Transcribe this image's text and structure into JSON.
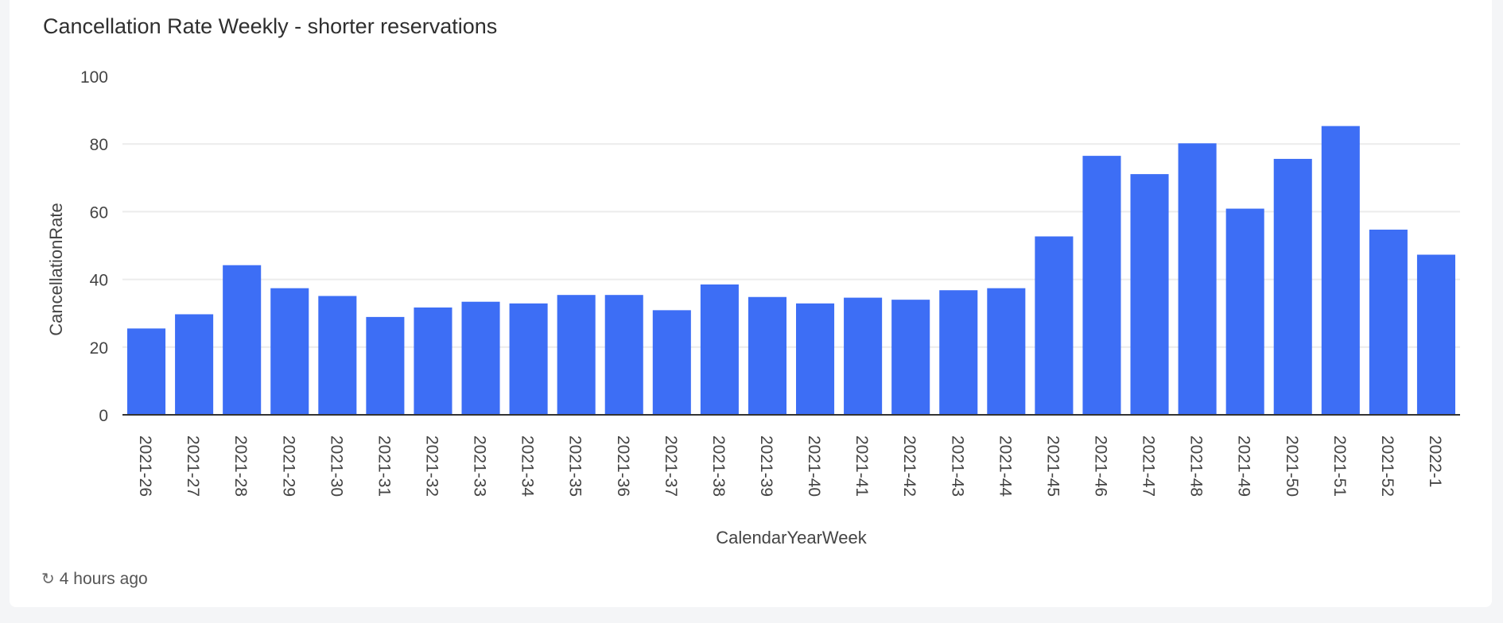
{
  "chart_data": {
    "type": "bar",
    "title": "Cancellation Rate Weekly - shorter reservations",
    "xlabel": "CalendarYearWeek",
    "ylabel": "CancellationRate",
    "ylim": [
      0,
      100
    ],
    "yticks": [
      0,
      20,
      40,
      60,
      80,
      100
    ],
    "grid": true,
    "color": "#3d6ef5",
    "categories": [
      "2021-26",
      "2021-27",
      "2021-28",
      "2021-29",
      "2021-30",
      "2021-31",
      "2021-32",
      "2021-33",
      "2021-34",
      "2021-35",
      "2021-36",
      "2021-37",
      "2021-38",
      "2021-39",
      "2021-40",
      "2021-41",
      "2021-42",
      "2021-43",
      "2021-44",
      "2021-45",
      "2021-46",
      "2021-47",
      "2021-48",
      "2021-49",
      "2021-50",
      "2021-51",
      "2021-52",
      "2022-1"
    ],
    "values": [
      25.5,
      29.7,
      44.2,
      37.4,
      35.1,
      28.9,
      31.7,
      33.4,
      32.9,
      35.4,
      35.4,
      30.9,
      38.5,
      34.8,
      32.9,
      34.6,
      34.0,
      36.8,
      37.4,
      52.7,
      76.5,
      71.1,
      80.2,
      60.9,
      75.6,
      85.3,
      54.7,
      47.3
    ]
  },
  "footer": {
    "refresh_icon": "refresh-icon",
    "updated": "4 hours ago"
  }
}
